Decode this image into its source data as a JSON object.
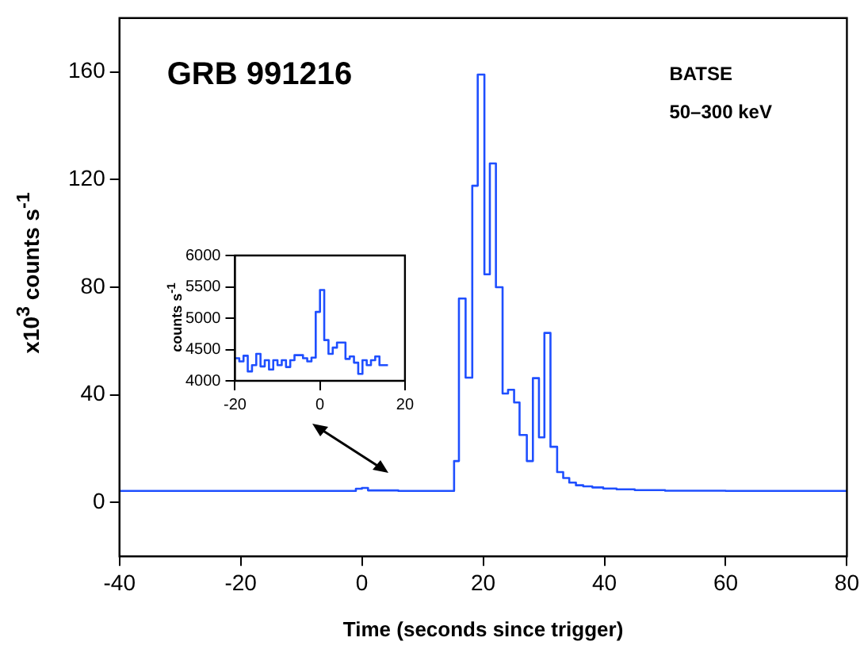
{
  "chart_data": [
    {
      "type": "step",
      "title": "GRB 991216",
      "xlabel": "Time (seconds since trigger)",
      "ylabel": "x10$^{3}$ counts s$^{-1}$",
      "annotations": [
        "BATSE",
        "50–300 keV"
      ],
      "x": [
        -40,
        -1,
        0,
        1,
        6,
        15.2,
        16.0,
        17.1,
        18.2,
        19.1,
        20.2,
        21.1,
        22.1,
        23.2,
        24.1,
        25.1,
        26.0,
        27.2,
        28.2,
        29.2,
        30.1,
        31.1,
        32.2,
        33.2,
        34.2,
        35.3,
        36.5,
        38,
        39.8,
        42,
        45,
        50,
        60,
        80
      ],
      "values": [
        4.3,
        5.1,
        5.4,
        4.5,
        4.3,
        15.4,
        75.8,
        46.4,
        117.7,
        159,
        84.8,
        126,
        80,
        40.5,
        41.9,
        37.2,
        25.1,
        15.4,
        46.2,
        24.2,
        63,
        20.7,
        11.3,
        9.1,
        7.4,
        6.4,
        6,
        5.6,
        5.2,
        4.9,
        4.6,
        4.4,
        4.3,
        4.3
      ],
      "color": "#1f4fff",
      "xlim": [
        -40,
        80
      ],
      "xticks": [
        -40,
        -20,
        0,
        20,
        40,
        60,
        80
      ],
      "ylim": [
        -20,
        180
      ],
      "yticks": [
        0,
        40,
        80,
        120,
        160
      ],
      "grid": false
    },
    {
      "type": "step",
      "ylabel": "counts s$^{-1}$",
      "x": [
        -20,
        -19,
        -18,
        -17,
        -16,
        -15,
        -14,
        -13,
        -12,
        -11,
        -10,
        -9,
        -8,
        -7,
        -6,
        -5,
        -4,
        -3,
        -2,
        -1,
        0,
        1,
        2,
        3,
        4,
        5,
        6,
        7,
        8,
        9,
        10,
        11,
        12,
        13,
        14,
        15,
        16
      ],
      "values": [
        4360,
        4310,
        4400,
        4150,
        4250,
        4430,
        4230,
        4330,
        4180,
        4330,
        4250,
        4330,
        4220,
        4330,
        4410,
        4410,
        4360,
        4310,
        4370,
        5100,
        5450,
        4650,
        4430,
        4530,
        4610,
        4610,
        4350,
        4390,
        4290,
        4110,
        4330,
        4250,
        4330,
        4390,
        4250,
        4250,
        4250
      ],
      "color": "#1f4fff",
      "xlim": [
        -20,
        20
      ],
      "xticks": [
        -20,
        0,
        20
      ],
      "ylim": [
        4000,
        6000
      ],
      "yticks": [
        4000,
        4500,
        5000,
        5500,
        6000
      ],
      "grid": false
    }
  ]
}
